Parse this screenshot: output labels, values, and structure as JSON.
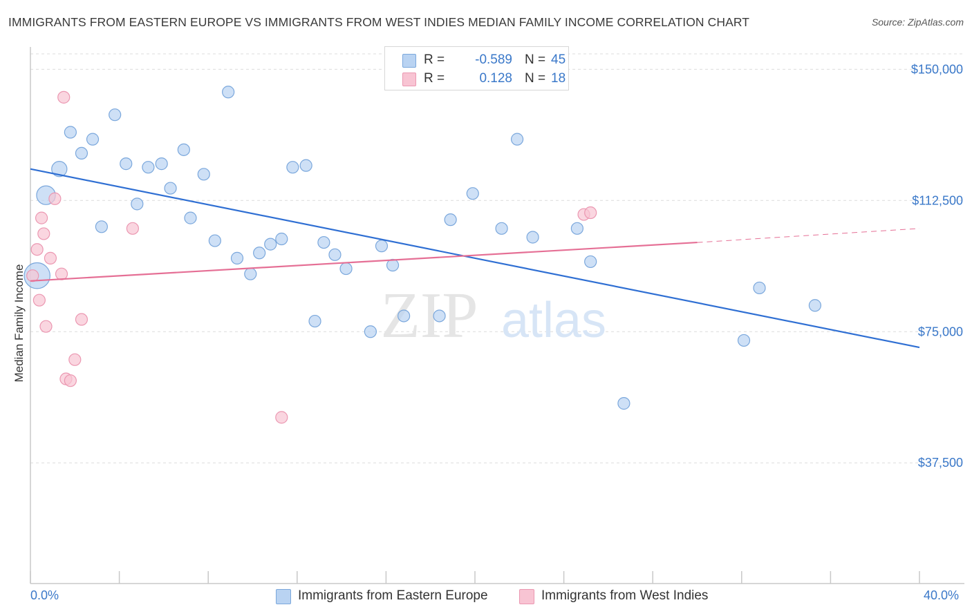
{
  "title": "IMMIGRANTS FROM EASTERN EUROPE VS IMMIGRANTS FROM WEST INDIES MEDIAN FAMILY INCOME CORRELATION CHART",
  "source": "Source: ZipAtlas.com",
  "watermark": {
    "zip": "ZIP",
    "atlas": "atlas"
  },
  "colors": {
    "blue_fill": "#b9d3f2",
    "blue_stroke": "#7aa7dc",
    "blue_line": "#2f6fd3",
    "pink_fill": "#f8c4d3",
    "pink_stroke": "#eb97b1",
    "pink_line": "#e56f95",
    "axis_label": "#3a78c9",
    "grid": "#dcdcdc"
  },
  "legend": {
    "rows": [
      {
        "r_label": "R =",
        "r_value": "-0.589",
        "n_label": "N =",
        "n_value": "45",
        "color": "#b9d3f2",
        "border": "#7aa7dc"
      },
      {
        "r_label": "R =",
        "r_value": "0.128",
        "n_label": "N =",
        "n_value": "18",
        "color": "#f8c4d3",
        "border": "#eb97b1"
      }
    ]
  },
  "chart_data": {
    "type": "scatter",
    "title": "IMMIGRANTS FROM EASTERN EUROPE VS IMMIGRANTS FROM WEST INDIES MEDIAN FAMILY INCOME CORRELATION CHART",
    "xlabel": "",
    "ylabel": "Median Family Income",
    "xlim": [
      0,
      40
    ],
    "ylim": [
      3000,
      155000
    ],
    "x_tick_labels": [
      "0.0%",
      "40.0%"
    ],
    "y_ticks": [
      37500,
      75000,
      112500,
      150000
    ],
    "y_tick_labels": [
      "$37,500",
      "$75,000",
      "$112,500",
      "$150,000"
    ],
    "grid": "horizontal dashed",
    "legend_position": "top-center",
    "series": [
      {
        "name": "Immigrants from Eastern Europe",
        "color": "#b9d3f2",
        "points": [
          [
            0.3,
            91000,
            2.2
          ],
          [
            0.7,
            114000,
            1.6
          ],
          [
            1.3,
            121500,
            1.3
          ],
          [
            1.8,
            132000,
            1
          ],
          [
            2.3,
            126000,
            1
          ],
          [
            2.8,
            130000,
            1
          ],
          [
            3.2,
            105000,
            1
          ],
          [
            3.8,
            137000,
            1
          ],
          [
            4.3,
            123000,
            1
          ],
          [
            4.8,
            111500,
            1
          ],
          [
            5.3,
            122000,
            1
          ],
          [
            5.9,
            123000,
            1
          ],
          [
            6.3,
            116000,
            1
          ],
          [
            6.9,
            127000,
            1
          ],
          [
            7.2,
            107500,
            1
          ],
          [
            7.8,
            120000,
            1
          ],
          [
            8.3,
            101000,
            1
          ],
          [
            8.9,
            143500,
            1
          ],
          [
            9.3,
            96000,
            1
          ],
          [
            9.9,
            91500,
            1
          ],
          [
            10.3,
            97500,
            1
          ],
          [
            10.8,
            100000,
            1
          ],
          [
            11.3,
            101500,
            1
          ],
          [
            11.8,
            122000,
            1
          ],
          [
            12.4,
            122500,
            1
          ],
          [
            12.8,
            78000,
            1
          ],
          [
            13.2,
            100500,
            1
          ],
          [
            13.7,
            97000,
            1
          ],
          [
            14.2,
            93000,
            1
          ],
          [
            15.3,
            75000,
            1
          ],
          [
            15.8,
            99500,
            1
          ],
          [
            16.3,
            94000,
            1
          ],
          [
            16.8,
            79500,
            1
          ],
          [
            18.4,
            79500,
            1
          ],
          [
            18.9,
            107000,
            1
          ],
          [
            19.9,
            114500,
            1
          ],
          [
            21.2,
            104500,
            1
          ],
          [
            21.9,
            130000,
            1
          ],
          [
            22.6,
            102000,
            1
          ],
          [
            24.6,
            104500,
            1
          ],
          [
            25.2,
            95000,
            1
          ],
          [
            26.7,
            54500,
            1
          ],
          [
            32.1,
            72500,
            1
          ],
          [
            32.8,
            87500,
            1
          ],
          [
            35.3,
            82500,
            1
          ]
        ]
      },
      {
        "name": "Immigrants from West Indies",
        "color": "#f8c4d3",
        "points": [
          [
            0.1,
            91000,
            1
          ],
          [
            0.3,
            98500,
            1
          ],
          [
            0.4,
            84000,
            1
          ],
          [
            0.5,
            107500,
            1
          ],
          [
            0.6,
            103000,
            1
          ],
          [
            0.7,
            76500,
            1
          ],
          [
            0.9,
            96000,
            1
          ],
          [
            1.1,
            113000,
            1
          ],
          [
            1.4,
            91500,
            1
          ],
          [
            1.5,
            142000,
            1
          ],
          [
            1.6,
            61500,
            1
          ],
          [
            1.8,
            61000,
            1
          ],
          [
            2.0,
            67000,
            1
          ],
          [
            2.3,
            78500,
            1
          ],
          [
            4.6,
            104500,
            1
          ],
          [
            11.3,
            50500,
            1
          ],
          [
            24.9,
            108500,
            1
          ],
          [
            25.2,
            109000,
            1
          ]
        ]
      }
    ],
    "trendlines": [
      {
        "series": "Immigrants from Eastern Europe",
        "x": [
          0,
          40
        ],
        "y": [
          121500,
          70500
        ],
        "style": "solid"
      },
      {
        "series": "Immigrants from West Indies",
        "x": [
          0,
          30
        ],
        "y": [
          89500,
          100500
        ],
        "style": "solid"
      },
      {
        "series": "Immigrants from West Indies",
        "x": [
          30,
          40
        ],
        "y": [
          100500,
          104500
        ],
        "style": "dashed"
      }
    ]
  }
}
